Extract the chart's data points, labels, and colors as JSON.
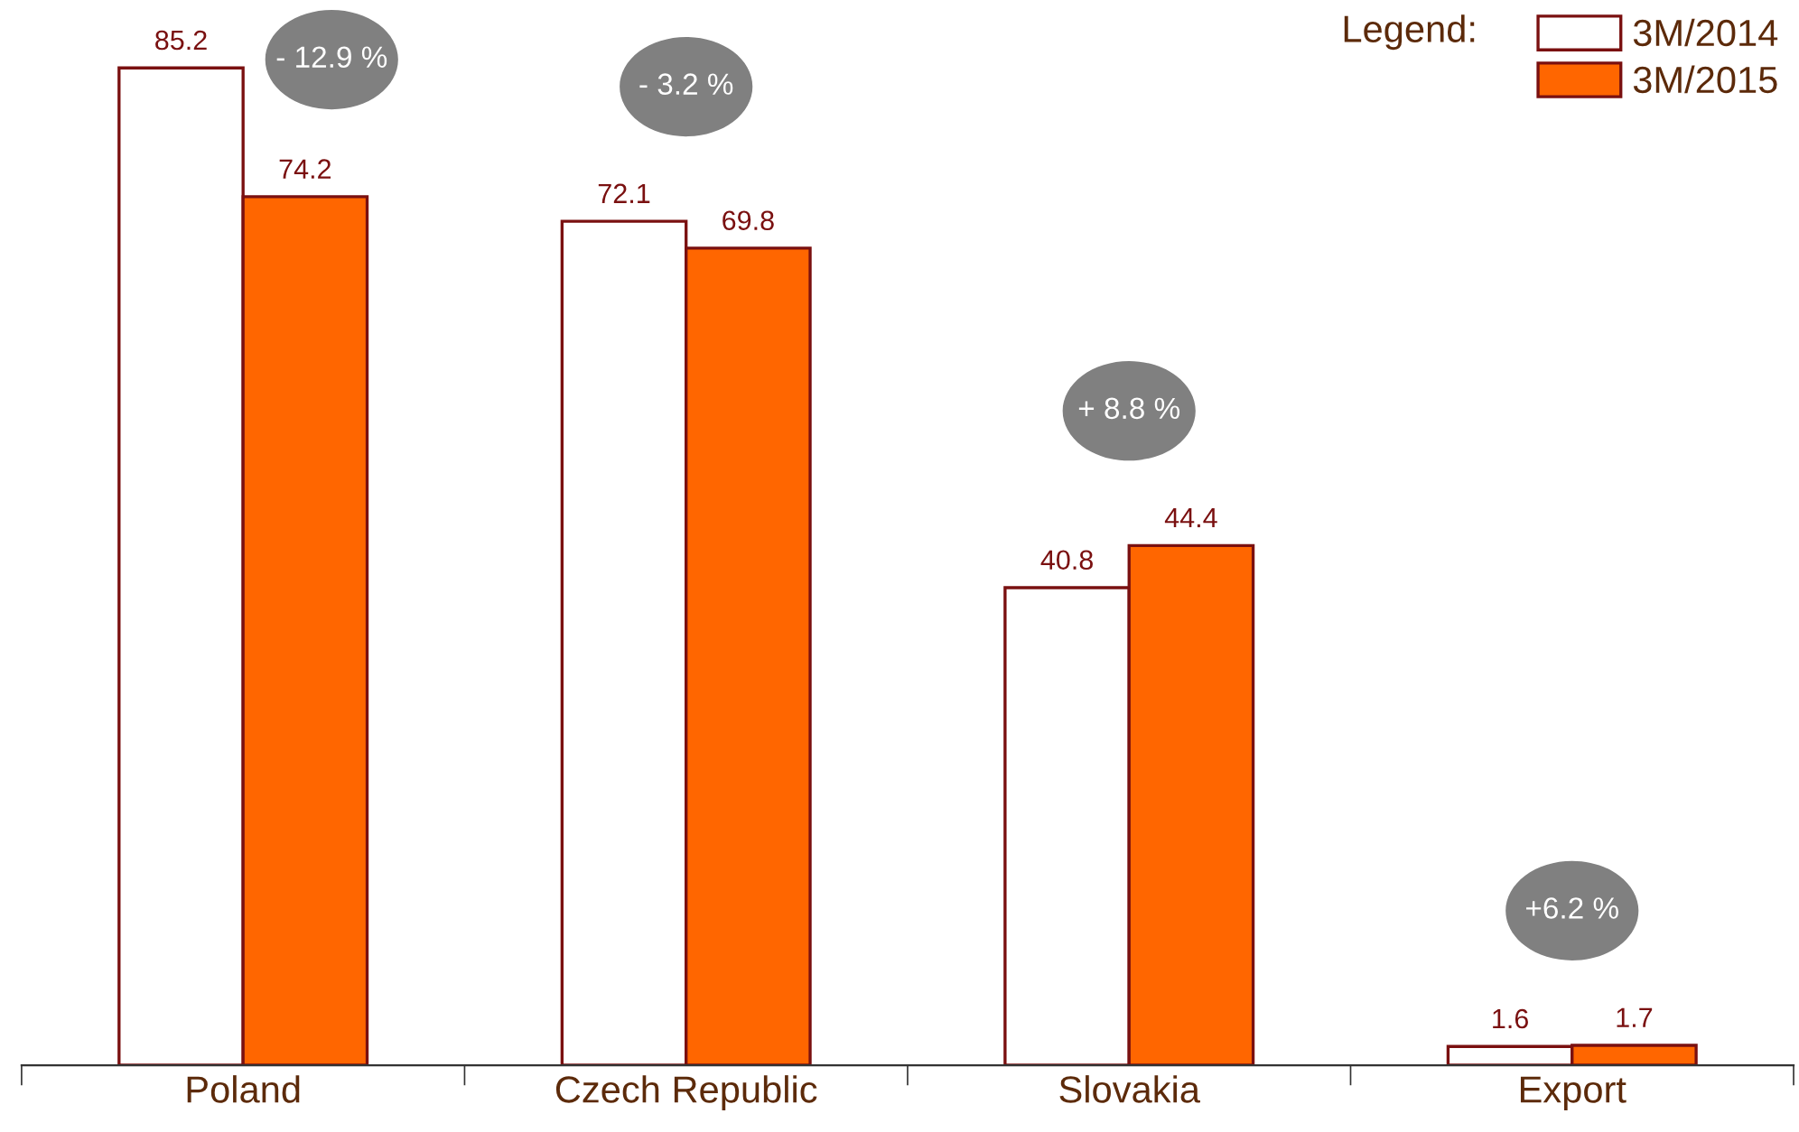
{
  "chart_data": {
    "type": "bar",
    "categories": [
      "Poland",
      "Czech Republic",
      "Slovakia",
      "Export"
    ],
    "series": [
      {
        "name": "3M/2014",
        "color": "#ffffff",
        "values": [
          85.2,
          72.1,
          40.8,
          1.6
        ]
      },
      {
        "name": "3M/2015",
        "color": "#ff6600",
        "values": [
          74.2,
          69.8,
          44.4,
          1.7
        ]
      }
    ],
    "data_labels": true,
    "legend": "top right",
    "legend_title": "Legend:",
    "annotations": [
      "- 12.9 %",
      "- 3.2 %",
      "+ 8.8 %",
      "+6.2 %"
    ]
  }
}
